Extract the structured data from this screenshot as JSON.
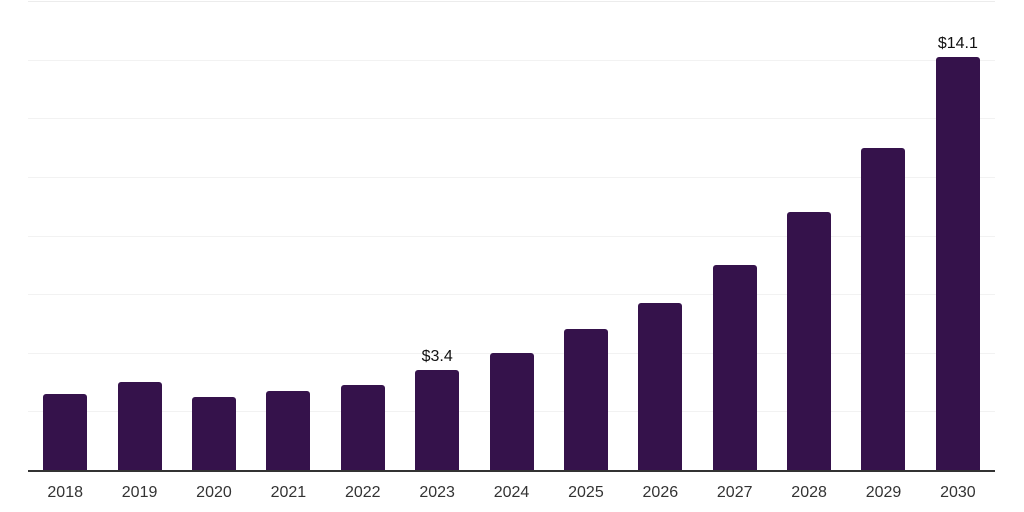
{
  "chart_data": {
    "type": "bar",
    "title": "",
    "xlabel": "",
    "ylabel": "",
    "categories": [
      "2018",
      "2019",
      "2020",
      "2021",
      "2022",
      "2023",
      "2024",
      "2025",
      "2026",
      "2027",
      "2028",
      "2029",
      "2030"
    ],
    "values": [
      2.6,
      3.0,
      2.5,
      2.7,
      2.9,
      3.4,
      4.0,
      4.8,
      5.7,
      7.0,
      8.8,
      11.0,
      14.1
    ],
    "bar_labels": [
      "",
      "",
      "",
      "",
      "",
      "$3.4",
      "",
      "",
      "",
      "",
      "",
      "",
      "$14.1"
    ],
    "ylim": [
      0,
      16
    ],
    "gridline_step": 2,
    "grid": true,
    "y_tick_labels_visible": false,
    "legend_position": "none",
    "colors": {
      "bar": "#35124B",
      "axis_line": "#333333",
      "gridline": "#f2f2f2",
      "top_gridline": "#ececec",
      "value_label": "#111111",
      "tick_label": "#333333",
      "background": "#ffffff"
    }
  }
}
